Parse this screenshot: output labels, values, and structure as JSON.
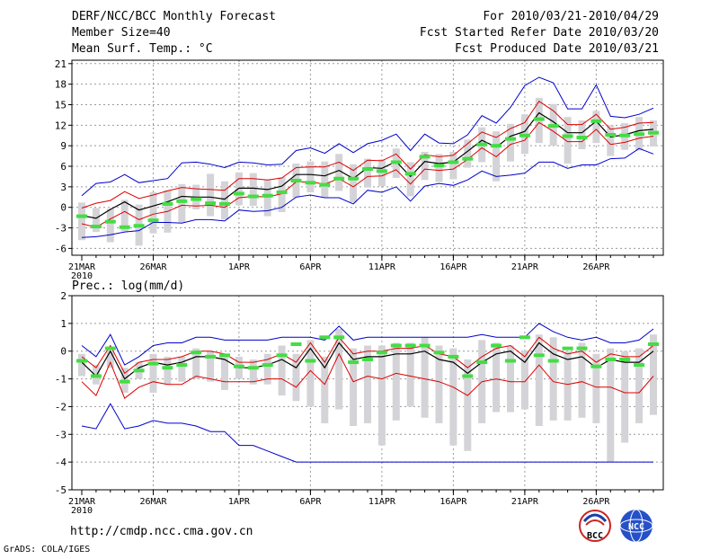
{
  "header": {
    "title": "DERF/NCC/BCC Monthly Forecast",
    "member_size": "Member Size=40",
    "variable": "Mean Surf. Temp.: °C",
    "period": "For 2010/03/21-2010/04/29",
    "started": "Fcst Started Refer Date 2010/03/20",
    "produced": "Fcst Produced Date 2010/03/21"
  },
  "footer": {
    "url": "http://cmdp.ncc.cma.gov.cn",
    "grads": "GrADS: COLA/IGES",
    "logo1_text": "BCC",
    "logo2_text": "NCC"
  },
  "colors": {
    "box": "#d4d4d8",
    "obs": "#44dd44",
    "spread": "#0000cc",
    "std": "#dd0000",
    "mean": "#000000",
    "grid": "#999999"
  },
  "chart_data": [
    {
      "type": "line",
      "title": "Mean Surf. Temp.: °C",
      "ylim": [
        -7,
        21.5
      ],
      "yticks": [
        -6,
        -3,
        0,
        3,
        6,
        9,
        12,
        15,
        18,
        21
      ],
      "x_ticks": [
        {
          "day": 0,
          "label": "21MAR"
        },
        {
          "day": 5,
          "label": "26MAR"
        },
        {
          "day": 11,
          "label": "1APR"
        },
        {
          "day": 16,
          "label": "6APR"
        },
        {
          "day": 21,
          "label": "11APR"
        },
        {
          "day": 26,
          "label": "16APR"
        },
        {
          "day": 31,
          "label": "21APR"
        },
        {
          "day": 36,
          "label": "26APR"
        }
      ],
      "x_year": "2010",
      "ensemble_mean": [
        -1.2,
        -1.6,
        -0.3,
        0.8,
        -0.4,
        0.2,
        0.8,
        1.6,
        1.5,
        1.5,
        1.2,
        2.8,
        2.8,
        2.6,
        3.1,
        4.8,
        4.8,
        4.6,
        5.4,
        4.2,
        5.8,
        5.7,
        6.7,
        4.5,
        6.7,
        6.4,
        6.6,
        8.2,
        9.8,
        8.8,
        10.4,
        11.1,
        13.8,
        12.5,
        10.9,
        10.9,
        12.6,
        10.3,
        10.6,
        11.2,
        11.4
      ],
      "upper_std": [
        -0.1,
        0.6,
        1.0,
        2.3,
        1.3,
        1.8,
        2.4,
        2.9,
        2.7,
        2.6,
        2.5,
        4.2,
        4.2,
        4.0,
        4.3,
        5.8,
        5.9,
        5.9,
        6.6,
        5.4,
        6.9,
        6.8,
        7.8,
        5.6,
        7.7,
        7.4,
        7.6,
        9.3,
        11.0,
        10.2,
        11.5,
        12.4,
        15.5,
        14.1,
        12.1,
        12.1,
        13.6,
        11.4,
        11.7,
        12.3,
        12.4
      ],
      "lower_std": [
        -2.4,
        -2.9,
        -1.7,
        -0.6,
        -1.8,
        -1.0,
        -0.6,
        0.3,
        0.2,
        0.3,
        0.0,
        1.4,
        1.6,
        1.5,
        2.0,
        3.7,
        3.7,
        3.4,
        4.2,
        3.0,
        4.5,
        4.6,
        5.5,
        3.4,
        5.6,
        5.4,
        5.6,
        7.0,
        8.7,
        7.4,
        9.2,
        9.8,
        12.4,
        11.1,
        9.6,
        9.6,
        11.4,
        9.2,
        9.5,
        10.1,
        10.4
      ],
      "spread_max": [
        1.7,
        3.5,
        3.7,
        4.8,
        3.6,
        3.9,
        4.2,
        6.5,
        6.6,
        6.3,
        5.8,
        6.6,
        6.5,
        6.2,
        6.3,
        8.3,
        8.7,
        7.9,
        9.3,
        8.0,
        9.3,
        9.8,
        10.7,
        8.3,
        10.7,
        9.4,
        9.3,
        10.6,
        13.4,
        12.3,
        14.6,
        17.8,
        19.0,
        18.2,
        14.4,
        14.4,
        17.9,
        13.3,
        13.1,
        13.6,
        14.5
      ],
      "spread_min": [
        -4.4,
        -4.3,
        -4.0,
        -3.6,
        -3.4,
        -2.2,
        -2.2,
        -2.3,
        -1.8,
        -1.8,
        -2.0,
        -0.4,
        -0.6,
        -0.5,
        0.0,
        1.5,
        1.8,
        1.4,
        1.4,
        0.5,
        2.5,
        2.2,
        3.0,
        0.9,
        3.1,
        3.5,
        3.2,
        4.0,
        5.3,
        4.5,
        4.7,
        5.0,
        6.6,
        6.6,
        5.7,
        6.2,
        6.2,
        7.1,
        7.2,
        8.6,
        7.8
      ],
      "box_high": [
        0.7,
        -0.1,
        -0.2,
        1.1,
        0.4,
        2.2,
        2.5,
        3.4,
        3.3,
        4.9,
        3.8,
        5.1,
        5.0,
        4.0,
        4.4,
        6.4,
        6.7,
        6.7,
        7.8,
        6.3,
        7.1,
        7.0,
        8.6,
        6.6,
        8.1,
        7.8,
        8.1,
        9.9,
        11.7,
        11.1,
        12.2,
        13.6,
        16.0,
        15.1,
        13.2,
        12.7,
        14.1,
        12.0,
        12.3,
        13.2,
        12.7
      ],
      "box_low": [
        -4.8,
        -3.6,
        -5.1,
        -3.5,
        -5.6,
        -3.8,
        -3.7,
        -2.2,
        -0.3,
        -1.3,
        -1.8,
        0.3,
        0.2,
        -1.3,
        -0.7,
        1.4,
        2.2,
        1.5,
        2.4,
        0.7,
        2.9,
        3.1,
        4.3,
        1.6,
        4.0,
        3.7,
        4.1,
        5.8,
        6.6,
        3.8,
        6.7,
        7.8,
        9.4,
        9.0,
        6.4,
        8.5,
        9.4,
        7.5,
        8.4,
        8.3,
        8.9
      ],
      "observed": [
        -1.3,
        -2.8,
        -2.1,
        -2.9,
        -2.7,
        -1.9,
        0.5,
        0.9,
        1.2,
        0.6,
        0.5,
        2.0,
        1.6,
        1.7,
        2.2,
        3.9,
        3.6,
        3.3,
        4.2,
        4.2,
        5.6,
        5.3,
        6.6,
        4.9,
        7.4,
        6.1,
        6.6,
        7.1,
        9.2,
        9.0,
        10.0,
        10.5,
        12.9,
        11.9,
        10.4,
        10.2,
        12.6,
        10.6,
        10.5,
        10.7,
        10.9
      ]
    },
    {
      "type": "line",
      "title": "Prec.: log(mm/d)",
      "ylim": [
        -5,
        2
      ],
      "yticks": [
        -5,
        -4,
        -3,
        -2,
        -1,
        0,
        1,
        2
      ],
      "x_ticks": [
        {
          "day": 0,
          "label": "21MAR"
        },
        {
          "day": 5,
          "label": "26MAR"
        },
        {
          "day": 11,
          "label": "1APR"
        },
        {
          "day": 16,
          "label": "6APR"
        },
        {
          "day": 21,
          "label": "11APR"
        },
        {
          "day": 26,
          "label": "16APR"
        },
        {
          "day": 31,
          "label": "21APR"
        },
        {
          "day": 36,
          "label": "26APR"
        }
      ],
      "x_year": "2010",
      "ensemble_mean": [
        -0.4,
        -0.9,
        0.0,
        -1.0,
        -0.6,
        -0.4,
        -0.5,
        -0.4,
        -0.2,
        -0.2,
        -0.3,
        -0.6,
        -0.6,
        -0.5,
        -0.3,
        -0.6,
        0.1,
        -0.6,
        0.3,
        -0.3,
        -0.2,
        -0.2,
        -0.1,
        -0.1,
        0.0,
        -0.3,
        -0.4,
        -0.8,
        -0.4,
        -0.1,
        0.0,
        -0.4,
        0.3,
        -0.1,
        -0.3,
        -0.2,
        -0.6,
        -0.3,
        -0.4,
        -0.4,
        0.0
      ],
      "upper_std": [
        -0.2,
        -0.6,
        0.2,
        -0.8,
        -0.4,
        -0.3,
        -0.3,
        -0.2,
        0.0,
        0.0,
        -0.1,
        -0.4,
        -0.4,
        -0.3,
        -0.1,
        -0.4,
        0.3,
        -0.4,
        0.5,
        -0.1,
        0.0,
        0.0,
        0.1,
        0.1,
        0.2,
        -0.1,
        -0.2,
        -0.6,
        -0.2,
        0.1,
        0.2,
        -0.2,
        0.5,
        0.1,
        -0.1,
        0.0,
        -0.4,
        -0.1,
        -0.2,
        -0.2,
        0.2
      ],
      "lower_std": [
        -1.1,
        -1.6,
        -0.4,
        -1.7,
        -1.3,
        -1.1,
        -1.2,
        -1.2,
        -0.9,
        -1.0,
        -1.1,
        -1.1,
        -1.1,
        -1.0,
        -1.0,
        -1.3,
        -0.7,
        -1.2,
        -0.1,
        -1.1,
        -0.9,
        -1.0,
        -0.8,
        -0.9,
        -1.0,
        -1.1,
        -1.3,
        -1.6,
        -1.1,
        -1.0,
        -1.1,
        -1.1,
        -0.5,
        -1.1,
        -1.2,
        -1.1,
        -1.3,
        -1.3,
        -1.5,
        -1.5,
        -0.9
      ],
      "spread_max": [
        0.2,
        -0.2,
        0.6,
        -0.5,
        -0.2,
        0.2,
        0.3,
        0.3,
        0.5,
        0.5,
        0.4,
        0.4,
        0.4,
        0.4,
        0.5,
        0.5,
        0.5,
        0.4,
        0.9,
        0.4,
        0.5,
        0.5,
        0.5,
        0.5,
        0.5,
        0.5,
        0.5,
        0.5,
        0.6,
        0.5,
        0.5,
        0.5,
        1.0,
        0.7,
        0.5,
        0.4,
        0.5,
        0.3,
        0.3,
        0.4,
        0.8
      ],
      "spread_min": [
        -2.7,
        -2.8,
        -1.9,
        -2.8,
        -2.7,
        -2.5,
        -2.6,
        -2.6,
        -2.7,
        -2.9,
        -2.9,
        -3.4,
        -3.4,
        -3.6,
        -3.8,
        -4.0,
        -4.0,
        -4.0,
        -4.0,
        -4.0,
        -4.0,
        -4.0,
        -4.0,
        -4.0,
        -4.0,
        -4.0,
        -4.0,
        -4.0,
        -4.0,
        -4.0,
        -4.0,
        -4.0,
        -4.0,
        -4.0,
        -4.0,
        -4.0,
        -4.0,
        -4.0,
        -4.0,
        -4.0,
        -4.0
      ],
      "box_high": [
        -0.1,
        -0.5,
        0.0,
        -0.6,
        -0.4,
        -0.1,
        -0.2,
        -0.2,
        0.1,
        0.0,
        -0.1,
        -0.2,
        -0.3,
        -0.1,
        0.2,
        -0.1,
        0.4,
        -0.2,
        0.8,
        0.1,
        0.2,
        0.2,
        0.3,
        0.3,
        0.5,
        0.2,
        0.1,
        -0.3,
        0.4,
        0.3,
        0.2,
        0.0,
        0.6,
        0.5,
        0.0,
        0.3,
        -0.1,
        0.1,
        0.0,
        0.1,
        0.6
      ],
      "box_low": [
        -0.9,
        -1.2,
        -0.6,
        -1.5,
        -1.0,
        -1.5,
        -1.2,
        -1.1,
        -1.0,
        -1.1,
        -1.4,
        -1.0,
        -1.2,
        -1.2,
        -1.6,
        -1.8,
        -2.0,
        -2.6,
        -2.1,
        -2.7,
        -2.6,
        -3.4,
        -2.5,
        -2.0,
        -2.4,
        -2.6,
        -3.4,
        -3.6,
        -2.6,
        -2.2,
        -2.2,
        -2.1,
        -2.7,
        -2.5,
        -2.5,
        -2.4,
        -2.6,
        -4.0,
        -3.3,
        -2.6,
        -2.3
      ],
      "observed": [
        -0.35,
        -0.9,
        0.1,
        -1.1,
        -0.7,
        -0.45,
        -0.6,
        -0.5,
        -0.05,
        -0.2,
        -0.15,
        -0.55,
        -0.6,
        -0.5,
        -0.15,
        0.25,
        -0.35,
        0.5,
        0.5,
        -0.4,
        -0.3,
        -0.05,
        0.2,
        0.2,
        0.2,
        -0.05,
        -0.2,
        -0.9,
        -0.4,
        0.2,
        -0.35,
        0.5,
        -0.15,
        -0.35,
        0.1,
        0.1,
        -0.55,
        -0.3,
        -0.3,
        -0.5,
        0.25
      ]
    }
  ]
}
